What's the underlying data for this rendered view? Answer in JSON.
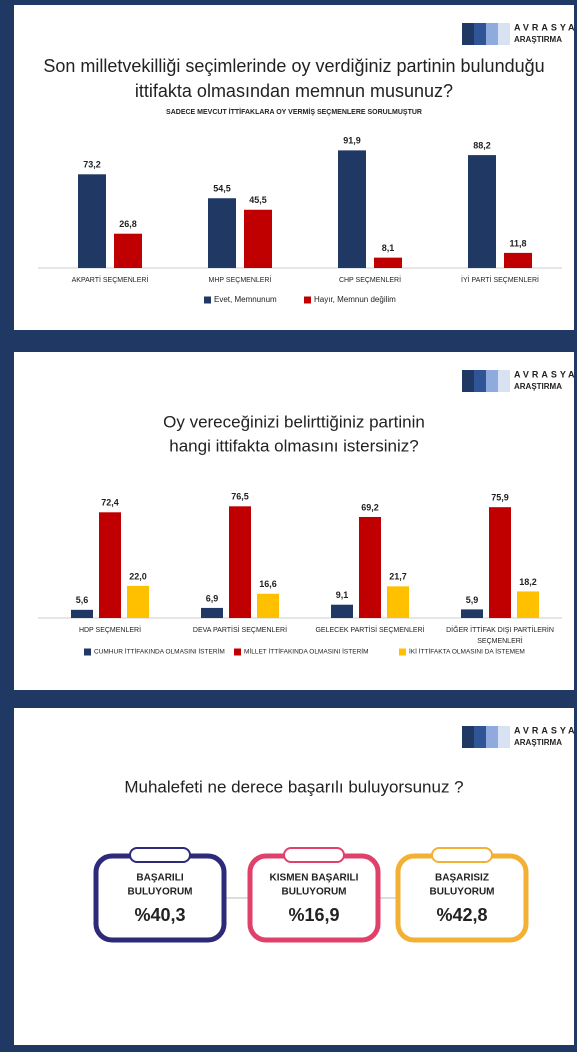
{
  "chart_data": [
    {
      "type": "bar",
      "logo": [
        "AVRASYA",
        "ARAŞTIRMA"
      ],
      "title": [
        "Son milletvekilliği seçimlerinde oy verdiğiniz partinin bulunduğu",
        "ittifakta olmasından memnun musunuz?"
      ],
      "subtitle": "SADECE MEVCUT İTTİFAKLARA OY VERMİŞ SEÇMENLERE SORULMUŞTUR",
      "categories": [
        "AKPARTİ SEÇMENLERİ",
        "MHP SEÇMENLERİ",
        "CHP SEÇMENLERİ",
        "İYİ PARTİ SEÇMENLERİ"
      ],
      "series": [
        {
          "name": "Evet, Memnunum",
          "color": "#1f3864",
          "values": [
            73.2,
            54.5,
            91.9,
            88.2
          ],
          "value_labels": [
            "73,2",
            "54,5",
            "91,9",
            "88,2"
          ]
        },
        {
          "name": "Hayır, Memnun değilim",
          "color": "#c00000",
          "values": [
            26.8,
            45.5,
            8.1,
            11.8
          ],
          "value_labels": [
            "26,8",
            "45,5",
            "8,1",
            "11,8"
          ]
        }
      ],
      "ylim": [
        0,
        100
      ]
    },
    {
      "type": "bar",
      "logo": [
        "AVRASYA",
        "ARAŞTIRMA"
      ],
      "title": [
        "Oy vereceğinizi belirttiğiniz partinin",
        "hangi ittifakta olmasını istersiniz?"
      ],
      "categories": [
        "HDP SEÇMENLERİ",
        "DEVA PARTİSİ SEÇMENLERİ",
        "GELECEK PARTİSİ SEÇMENLERİ",
        [
          "DİĞER İTTİFAK DIŞI PARTİLERİN",
          "SEÇMENLERİ"
        ]
      ],
      "series": [
        {
          "name": "CUMHUR İTTİFAKINDA OLMASINI İSTERİM",
          "color": "#1f3864",
          "values": [
            5.6,
            6.9,
            9.1,
            5.9
          ],
          "value_labels": [
            "5,6",
            "6,9",
            "9,1",
            "5,9"
          ]
        },
        {
          "name": "MİLLET İTTİFAKINDA OLMASINI İSTERİM",
          "color": "#c00000",
          "values": [
            72.4,
            76.5,
            69.2,
            75.9
          ],
          "value_labels": [
            "72,4",
            "76,5",
            "69,2",
            "75,9"
          ]
        },
        {
          "name": "İKİ İTTİFAKTA OLMASINI DA İSTEMEM",
          "color": "#ffc000",
          "values": [
            22.0,
            16.6,
            21.7,
            18.2
          ],
          "value_labels": [
            "22,0",
            "16,6",
            "21,7",
            "18,2"
          ]
        }
      ],
      "ylim": [
        0,
        100
      ]
    },
    {
      "type": "cards",
      "logo": [
        "AVRASYA",
        "ARAŞTIRMA"
      ],
      "title": [
        "Muhalefeti ne derece başarılı buluyorsunuz ?"
      ],
      "categories": [
        [
          "BAŞARILI",
          "BULUYORUM"
        ],
        [
          "KISMEN BAŞARILI",
          "BULUYORUM"
        ],
        [
          "BAŞARISIZ",
          "BULUYORUM"
        ]
      ],
      "values": [
        40.3,
        16.9,
        42.8
      ],
      "value_labels": [
        "%40,3",
        "%16,9",
        "%42,8"
      ],
      "colors": [
        "#2e2a7a",
        "#e0416b",
        "#f2b134"
      ]
    }
  ]
}
